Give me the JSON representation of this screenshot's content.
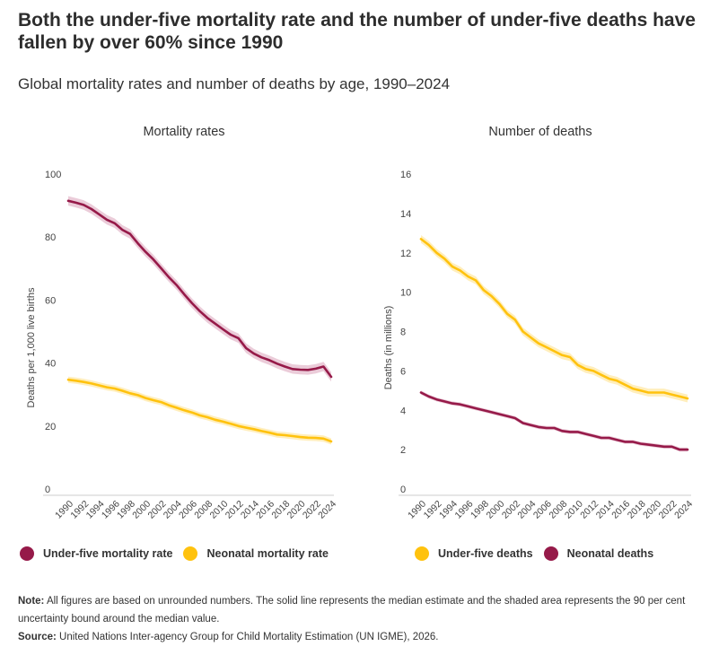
{
  "title": "Both the under-five mortality rate and the number of under-five deaths have fallen by over 60% since 1990",
  "subtitle": "Global mortality rates and number of deaths by age, 1990–2024",
  "colors": {
    "under_five": "#961A49",
    "neonatal": "#FFC20E",
    "under_five_band": "#E8C3D2",
    "neonatal_band": "#FFEBB0",
    "axis": "#cccccc"
  },
  "chart_data": [
    {
      "type": "line",
      "title": "Mortality rates",
      "xlabel": "",
      "ylabel": "Deaths per 1,000 live births",
      "ylim": [
        0,
        100
      ],
      "yticks": [
        0,
        20,
        40,
        60,
        80,
        100
      ],
      "xticks": [
        "1990",
        "1992",
        "1994",
        "1996",
        "1998",
        "2000",
        "2002",
        "2004",
        "2006",
        "2008",
        "2010",
        "2012",
        "2014",
        "2016",
        "2018",
        "2020",
        "2022",
        "2024"
      ],
      "x": [
        1990,
        1991,
        1992,
        1993,
        1994,
        1995,
        1996,
        1997,
        1998,
        1999,
        2000,
        2001,
        2002,
        2003,
        2004,
        2005,
        2006,
        2007,
        2008,
        2009,
        2010,
        2011,
        2012,
        2013,
        2014,
        2015,
        2016,
        2017,
        2018,
        2019,
        2020,
        2021,
        2022,
        2023,
        2024
      ],
      "grid": false,
      "legend": "bottom",
      "series": [
        {
          "name": "Under-five mortality rate",
          "color": "under_five",
          "values": [
            91.5,
            90.9,
            90.2,
            88.9,
            87.2,
            85.5,
            84.4,
            82.3,
            81.0,
            78.0,
            75.3,
            72.9,
            70.1,
            67.3,
            64.8,
            61.8,
            59.0,
            56.5,
            54.3,
            52.5,
            50.7,
            49.0,
            47.9,
            44.7,
            43.0,
            41.8,
            40.9,
            39.8,
            38.9,
            38.1,
            37.9,
            37.8,
            38.2,
            38.9,
            35.6
          ],
          "band": 1.5
        },
        {
          "name": "Neonatal mortality rate",
          "color": "neonatal",
          "values": [
            34.7,
            34.4,
            34.0,
            33.5,
            32.9,
            32.3,
            31.9,
            31.2,
            30.4,
            29.8,
            28.9,
            28.2,
            27.6,
            26.6,
            25.8,
            25.0,
            24.3,
            23.4,
            22.8,
            22.0,
            21.4,
            20.7,
            20.0,
            19.5,
            19.0,
            18.4,
            17.9,
            17.3,
            17.1,
            16.8,
            16.5,
            16.3,
            16.2,
            16.0,
            15.1
          ],
          "band": 1.0
        }
      ]
    },
    {
      "type": "line",
      "title": "Number of deaths",
      "xlabel": "",
      "ylabel": "Deaths (in millions)",
      "ylim": [
        0,
        16
      ],
      "yticks": [
        0,
        2,
        4,
        6,
        8,
        10,
        12,
        14,
        16
      ],
      "xticks": [
        "1990",
        "1992",
        "1994",
        "1996",
        "1998",
        "2000",
        "2002",
        "2004",
        "2006",
        "2008",
        "2010",
        "2012",
        "2014",
        "2016",
        "2018",
        "2020",
        "2022",
        "2024"
      ],
      "x": [
        1990,
        1991,
        1992,
        1993,
        1994,
        1995,
        1996,
        1997,
        1998,
        1999,
        2000,
        2001,
        2002,
        2003,
        2004,
        2005,
        2006,
        2007,
        2008,
        2009,
        2010,
        2011,
        2012,
        2013,
        2014,
        2015,
        2016,
        2017,
        2018,
        2019,
        2020,
        2021,
        2022,
        2023,
        2024
      ],
      "grid": false,
      "legend": "bottom",
      "series": [
        {
          "name": "Under-five deaths",
          "color": "neonatal",
          "values": [
            12.7,
            12.4,
            12.0,
            11.7,
            11.3,
            11.1,
            10.8,
            10.6,
            10.1,
            9.8,
            9.4,
            8.9,
            8.6,
            8.0,
            7.7,
            7.4,
            7.2,
            7.0,
            6.8,
            6.7,
            6.3,
            6.1,
            6.0,
            5.8,
            5.6,
            5.5,
            5.3,
            5.1,
            5.0,
            4.9,
            4.9,
            4.9,
            4.8,
            4.7,
            4.6
          ],
          "band": 0.2
        },
        {
          "name": "Neonatal deaths",
          "color": "under_five",
          "values": [
            4.9,
            4.7,
            4.55,
            4.45,
            4.35,
            4.3,
            4.2,
            4.1,
            4.0,
            3.9,
            3.8,
            3.7,
            3.6,
            3.35,
            3.25,
            3.15,
            3.1,
            3.1,
            2.95,
            2.9,
            2.9,
            2.8,
            2.7,
            2.6,
            2.6,
            2.5,
            2.4,
            2.4,
            2.3,
            2.25,
            2.2,
            2.15,
            2.15,
            2.0,
            2.0
          ],
          "band": 0.1
        }
      ]
    }
  ],
  "legends": [
    [
      {
        "label": "Under-five mortality rate",
        "color": "#961A49"
      },
      {
        "label": "Neonatal mortality rate",
        "color": "#FFC20E"
      }
    ],
    [
      {
        "label": "Under-five deaths",
        "color": "#FFC20E"
      },
      {
        "label": "Neonatal deaths",
        "color": "#961A49"
      }
    ]
  ],
  "note_label": "Note:",
  "note_text": " All figures are based on unrounded numbers. The solid line represents the median estimate and the shaded area represents the 90 per cent uncertainty bound around the median value.",
  "source_label": "Source:",
  "source_text": " United Nations Inter-agency Group for Child Mortality Estimation (UN IGME), 2026."
}
